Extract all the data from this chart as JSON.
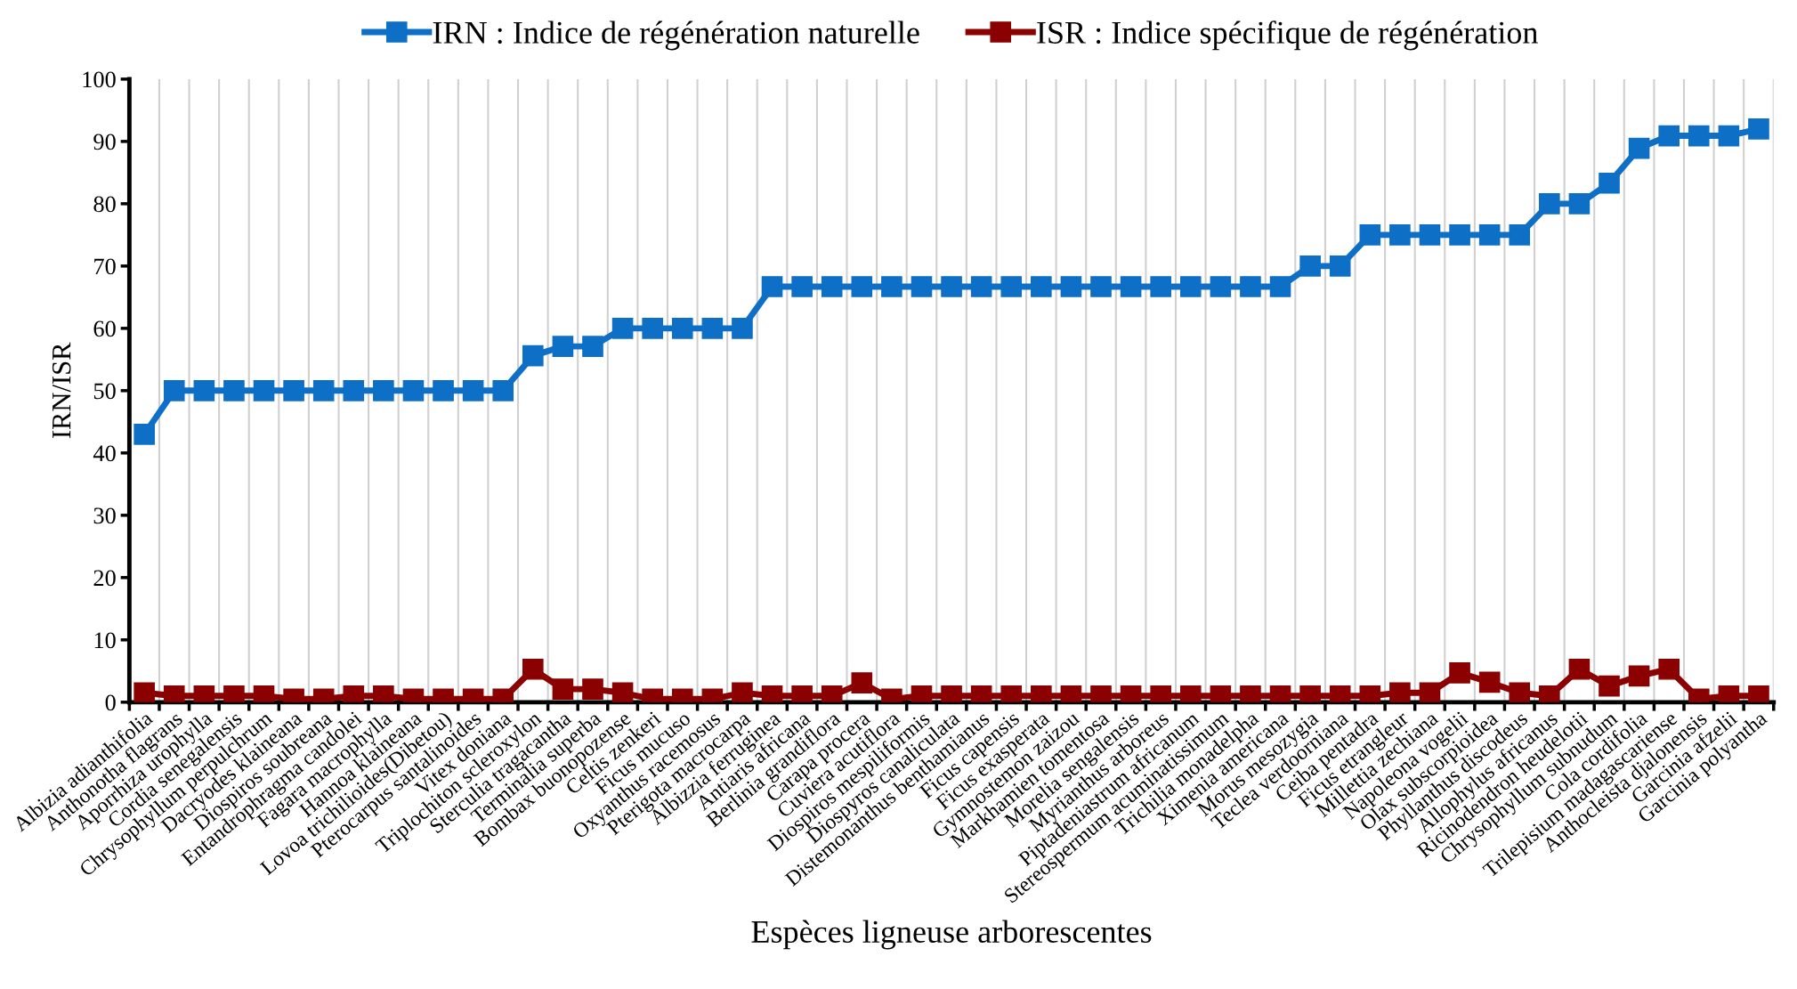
{
  "chart_data": {
    "type": "line",
    "xlabel": "Espèces ligneuse arborescentes",
    "ylabel": "IRN/ISR",
    "categories": [
      "Albizia adianthifolia",
      "Anthonotha flagrans",
      "Aporrhiza urophylla",
      "Cordia senegalensis",
      "Chrysophyllum perpulchrum",
      "Dacryodes klaineana",
      "Diospiros soubreana",
      "Entandrophragma candolei",
      "Fagara macrophylla",
      "Hannoa klaineana",
      "Lovoa trichilioides(Dibetou)",
      "Pterocarpus santalinoides",
      "Vitex doniana",
      "Triplochiton scleroxylon",
      "Sterculia tragacantha",
      "Terminalia superba",
      "Bombax buonopozense",
      "Celtis zenkeri",
      "Ficus mucuso",
      "Oxyanthus racemosus",
      "Pterigota macrocarpa",
      "Albizzia ferruginea",
      "Antiaris africana",
      "Berlinia grandiflora",
      "Carapa procera",
      "Cuviera acutiflora",
      "Diospiros mespiliformis",
      "Diospyros canaliculata",
      "Distemonanthus benthamianus",
      "Ficus capensis",
      "Ficus exasperata",
      "Gymnostemon zaizou",
      "Markhamien tomentosa",
      "Morelia sengalensis",
      "Myrianthus arboreus",
      "Piptadeniastrum africanum",
      "Stereospermum acuminatissimum",
      "Trichilia monadelpha",
      "Ximenia americana",
      "Morus mesozygia",
      "Teclea verdoorniana",
      "Ceiba pentadra",
      "Ficus etrangleur",
      "Millettia zechiana",
      "Napoleona vogelii",
      "Olax subscorpioidea",
      "Phyllanthus discodeus",
      "Allophylus africanus",
      "Ricinodendron heudelotii",
      "Chrysophyllum subnudum",
      "Cola cordifolia",
      "Trilepisium madagascariense",
      "Anthocleista djalonensis",
      "Garcinia afzelii",
      "Garcinia polyantha"
    ],
    "series": [
      {
        "name": "IRN : Indice de régénération naturelle",
        "color": "#0e6fc6",
        "values": [
          43,
          50,
          50,
          50,
          50,
          50,
          50,
          50,
          50,
          50,
          50,
          50,
          50,
          55.6,
          57.1,
          57.1,
          60,
          60,
          60,
          60,
          60,
          66.7,
          66.7,
          66.7,
          66.7,
          66.7,
          66.7,
          66.7,
          66.7,
          66.7,
          66.7,
          66.7,
          66.7,
          66.7,
          66.7,
          66.7,
          66.7,
          66.7,
          66.7,
          70,
          70,
          75,
          75,
          75,
          75,
          75,
          75,
          80,
          80,
          83.3,
          88.9,
          90.9,
          90.9,
          90.9,
          92
        ]
      },
      {
        "name": "ISR : Indice spécifique de régénération",
        "color": "#8b0000",
        "values": [
          1.5,
          1,
          1,
          1,
          1,
          0.5,
          0.5,
          1,
          1,
          0.5,
          0.5,
          0.5,
          0.5,
          5.3,
          2.1,
          2.1,
          1.5,
          0.5,
          0.5,
          0.5,
          1.5,
          1,
          1,
          1,
          3.1,
          0.5,
          1,
          1,
          1,
          1,
          1,
          1,
          1,
          1,
          1,
          1,
          1,
          1,
          1,
          1,
          1,
          1,
          1.5,
          1.5,
          4.7,
          3.2,
          1.5,
          1,
          5.3,
          2.6,
          4.2,
          5.3,
          0.5,
          1,
          1
        ]
      }
    ],
    "ylim": [
      0,
      100
    ],
    "yticks": [
      0,
      10,
      20,
      30,
      40,
      50,
      60,
      70,
      80,
      90,
      100
    ],
    "grid": "x",
    "legend": "top",
    "marker": "square",
    "line_style": "solid"
  }
}
